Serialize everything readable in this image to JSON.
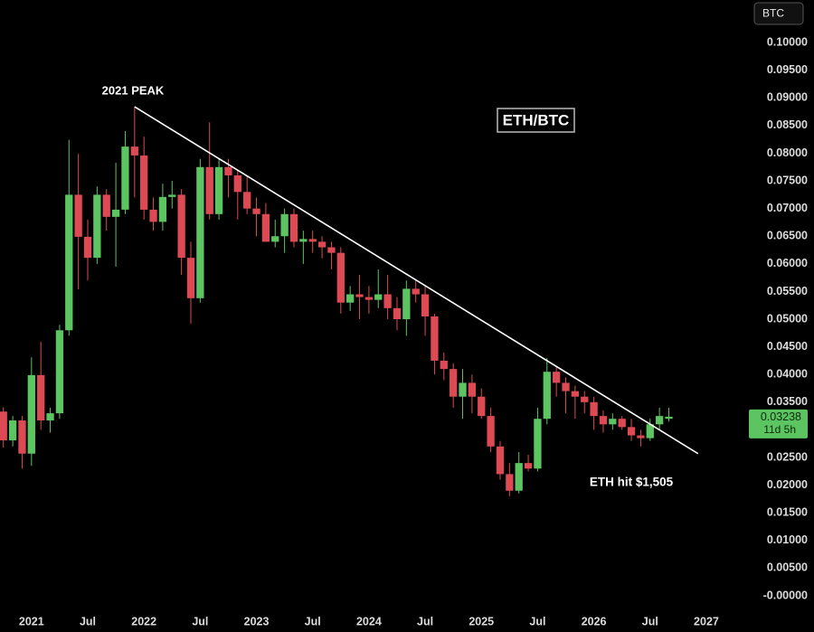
{
  "currency": "BTC",
  "chart_data": {
    "type": "candlestick",
    "title": "ETH/BTC",
    "annotations": [
      "2021 PEAK",
      "ETH hit $1,505"
    ],
    "up_color": "#5cc461",
    "down_color": "#dd4a54",
    "x": [
      2020.75,
      2020.8333,
      2020.9167,
      2021,
      2021.0833,
      2021.1667,
      2021.25,
      2021.3333,
      2021.4167,
      2021.5,
      2021.5833,
      2021.6667,
      2021.75,
      2021.8333,
      2021.9167,
      2022,
      2022.0833,
      2022.1667,
      2022.25,
      2022.3333,
      2022.4167,
      2022.5,
      2022.5833,
      2022.6667,
      2022.75,
      2022.8333,
      2022.9167,
      2023,
      2023.0833,
      2023.1667,
      2023.25,
      2023.3333,
      2023.4167,
      2023.5,
      2023.5833,
      2023.6667,
      2023.75,
      2023.8333,
      2023.9167,
      2024,
      2024.0833,
      2024.1667,
      2024.25,
      2024.3333,
      2024.4167,
      2024.5,
      2024.5833,
      2024.6667,
      2024.75,
      2024.8333,
      2024.9167,
      2025,
      2025.0833,
      2025.1667,
      2025.25,
      2025.3333,
      2025.4167,
      2025.5,
      2025.5833,
      2025.6667,
      2025.75,
      2025.8333,
      2025.9167,
      2026,
      2026.0833,
      2026.1667,
      2026.25,
      2026.3333,
      2026.4167,
      2026.5,
      2026.5833,
      2026.6667
    ],
    "open": [
      0.0333,
      0.0281,
      0.0317,
      0.0257,
      0.0399,
      0.0317,
      0.033,
      0.048,
      0.0725,
      0.0649,
      0.0611,
      0.0725,
      0.0685,
      0.0698,
      0.0812,
      0.0796,
      0.0698,
      0.0676,
      0.0721,
      0.0725,
      0.0611,
      0.0538,
      0.0775,
      0.069,
      0.0775,
      0.076,
      0.073,
      0.07,
      0.069,
      0.064,
      0.065,
      0.069,
      0.064,
      0.0645,
      0.064,
      0.063,
      0.062,
      0.053,
      0.0545,
      0.054,
      0.0535,
      0.0545,
      0.052,
      0.05,
      0.0555,
      0.0545,
      0.0505,
      0.0425,
      0.041,
      0.036,
      0.0385,
      0.036,
      0.0325,
      0.027,
      0.022,
      0.019,
      0.024,
      0.023,
      0.032,
      0.0405,
      0.0385,
      0.037,
      0.036,
      0.035,
      0.0325,
      0.031,
      0.032,
      0.0305,
      0.029,
      0.0285,
      0.031,
      0.032
    ],
    "high": [
      0.0341,
      0.0325,
      0.0325,
      0.0431,
      0.0459,
      0.034,
      0.049,
      0.0824,
      0.0799,
      0.068,
      0.074,
      0.0735,
      0.0783,
      0.084,
      0.0884,
      0.083,
      0.072,
      0.0745,
      0.075,
      0.0735,
      0.064,
      0.079,
      0.0856,
      0.079,
      0.079,
      0.077,
      0.076,
      0.072,
      0.071,
      0.068,
      0.07,
      0.07,
      0.066,
      0.066,
      0.065,
      0.064,
      0.063,
      0.056,
      0.058,
      0.056,
      0.059,
      0.058,
      0.054,
      0.057,
      0.057,
      0.056,
      0.051,
      0.044,
      0.042,
      0.041,
      0.04,
      0.0375,
      0.034,
      0.028,
      0.024,
      0.026,
      0.0255,
      0.034,
      0.043,
      0.0415,
      0.0395,
      0.038,
      0.037,
      0.036,
      0.0335,
      0.033,
      0.0325,
      0.032,
      0.03,
      0.032,
      0.034,
      0.034
    ],
    "low": [
      0.0268,
      0.027,
      0.023,
      0.0235,
      0.03,
      0.0295,
      0.032,
      0.047,
      0.0554,
      0.057,
      0.06,
      0.066,
      0.0595,
      0.069,
      0.072,
      0.068,
      0.066,
      0.066,
      0.07,
      0.058,
      0.0492,
      0.053,
      0.068,
      0.068,
      0.072,
      0.068,
      0.069,
      0.065,
      0.064,
      0.063,
      0.062,
      0.063,
      0.06,
      0.062,
      0.061,
      0.059,
      0.051,
      0.0515,
      0.05,
      0.051,
      0.052,
      0.05,
      0.048,
      0.047,
      0.053,
      0.047,
      0.04,
      0.039,
      0.034,
      0.032,
      0.033,
      0.032,
      0.026,
      0.021,
      0.018,
      0.0185,
      0.0225,
      0.0225,
      0.031,
      0.036,
      0.033,
      0.032,
      0.033,
      0.03,
      0.0295,
      0.03,
      0.03,
      0.028,
      0.027,
      0.028,
      0.03,
      0.0315
    ],
    "close": [
      0.0281,
      0.0317,
      0.0257,
      0.0399,
      0.0317,
      0.033,
      0.048,
      0.0725,
      0.0649,
      0.0611,
      0.0725,
      0.0685,
      0.0698,
      0.0812,
      0.0796,
      0.0698,
      0.0676,
      0.0721,
      0.0725,
      0.0611,
      0.0538,
      0.0775,
      0.069,
      0.0775,
      0.076,
      0.073,
      0.07,
      0.069,
      0.064,
      0.065,
      0.069,
      0.064,
      0.0645,
      0.064,
      0.063,
      0.062,
      0.053,
      0.0545,
      0.054,
      0.0535,
      0.0545,
      0.052,
      0.05,
      0.0555,
      0.0545,
      0.0505,
      0.0425,
      0.041,
      0.036,
      0.0385,
      0.036,
      0.0325,
      0.027,
      0.022,
      0.019,
      0.024,
      0.023,
      0.032,
      0.0405,
      0.0385,
      0.037,
      0.036,
      0.035,
      0.0325,
      0.031,
      0.032,
      0.0305,
      0.029,
      0.0285,
      0.031,
      0.0325,
      0.03238
    ],
    "last_price": 0.03238,
    "countdown": "11d 5h",
    "trendline": {
      "x": [
        2021.9167,
        2026.926
      ],
      "y": [
        0.0884,
        0.0257
      ]
    },
    "xlim": [
      2020.72,
      2027.33
    ],
    "ylim": [
      -0.0018,
      0.1077
    ],
    "xticks": [
      2021,
      {
        "value": 2021.5,
        "label": "Jul"
      },
      2022,
      {
        "value": 2022.5,
        "label": "Jul"
      },
      2023,
      {
        "value": 2023.5,
        "label": "Jul"
      },
      2024,
      {
        "value": 2024.5,
        "label": "Jul"
      },
      2025,
      {
        "value": 2025.5,
        "label": "Jul"
      },
      2026,
      {
        "value": 2026.5,
        "label": "Jul"
      },
      2027
    ],
    "yticks": [
      {
        "value": 0.1,
        "label": "0.10000"
      },
      {
        "value": 0.095,
        "label": "0.09500"
      },
      {
        "value": 0.09,
        "label": "0.09000"
      },
      {
        "value": 0.085,
        "label": "0.08500"
      },
      {
        "value": 0.08,
        "label": "0.08000"
      },
      {
        "value": 0.075,
        "label": "0.07500"
      },
      {
        "value": 0.07,
        "label": "0.07000"
      },
      {
        "value": 0.065,
        "label": "0.06500"
      },
      {
        "value": 0.06,
        "label": "0.06000"
      },
      {
        "value": 0.055,
        "label": "0.05500"
      },
      {
        "value": 0.05,
        "label": "0.05000"
      },
      {
        "value": 0.045,
        "label": "0.04500"
      },
      {
        "value": 0.04,
        "label": "0.04000"
      },
      {
        "value": 0.035,
        "label": "0.03500"
      },
      {
        "value": 0.03,
        "label": "0.03000"
      },
      {
        "value": 0.025,
        "label": "0.02500"
      },
      {
        "value": 0.02,
        "label": "0.02000"
      },
      {
        "value": 0.015,
        "label": "0.01500"
      },
      {
        "value": 0.01,
        "label": "0.01000"
      },
      {
        "value": 0.005,
        "label": "0.00500"
      },
      {
        "value": 0,
        "label": "-0.00000"
      }
    ],
    "grid": false
  }
}
